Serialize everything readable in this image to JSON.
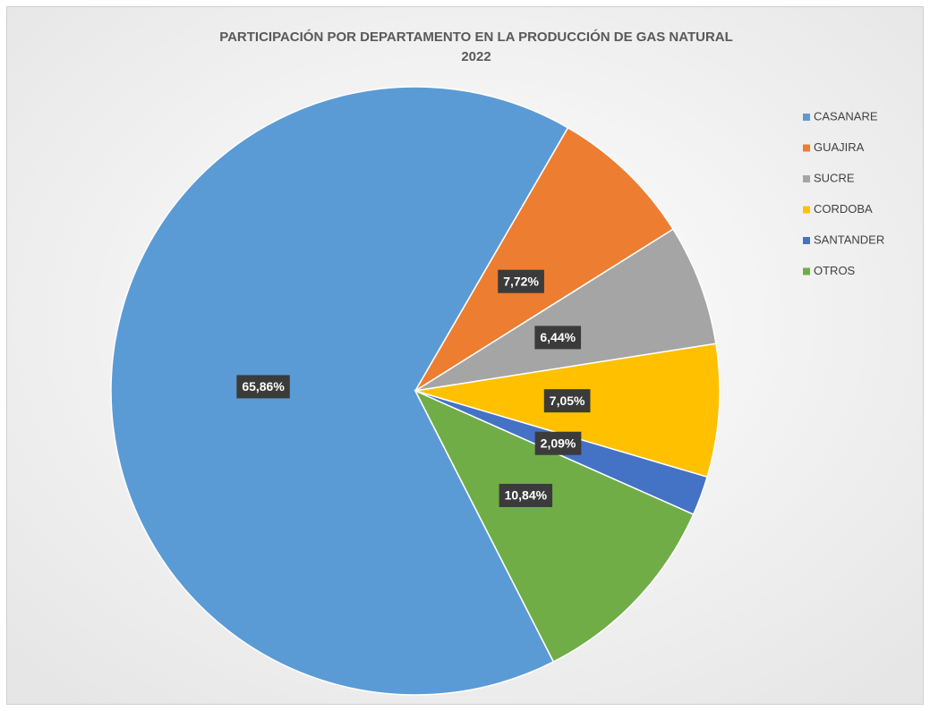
{
  "chart_data": {
    "type": "pie",
    "title": "PARTICIPACIÓN POR DEPARTAMENTO EN LA PRODUCCIÓN DE GAS NATURAL",
    "subtitle": "2022",
    "categories": [
      "CASANARE",
      "GUAJIRA",
      "SUCRE",
      "CORDOBA",
      "SANTANDER",
      "OTROS"
    ],
    "values": [
      65.86,
      7.72,
      6.44,
      7.05,
      2.09,
      10.84
    ],
    "value_labels": [
      "65,86%",
      "7,72%",
      "6,44%",
      "7,05%",
      "2,09%",
      "10,84%"
    ],
    "colors": [
      "#5b9bd5",
      "#ed7d31",
      "#a5a5a5",
      "#ffc000",
      "#4472c4",
      "#70ad47"
    ],
    "legend": "right"
  }
}
